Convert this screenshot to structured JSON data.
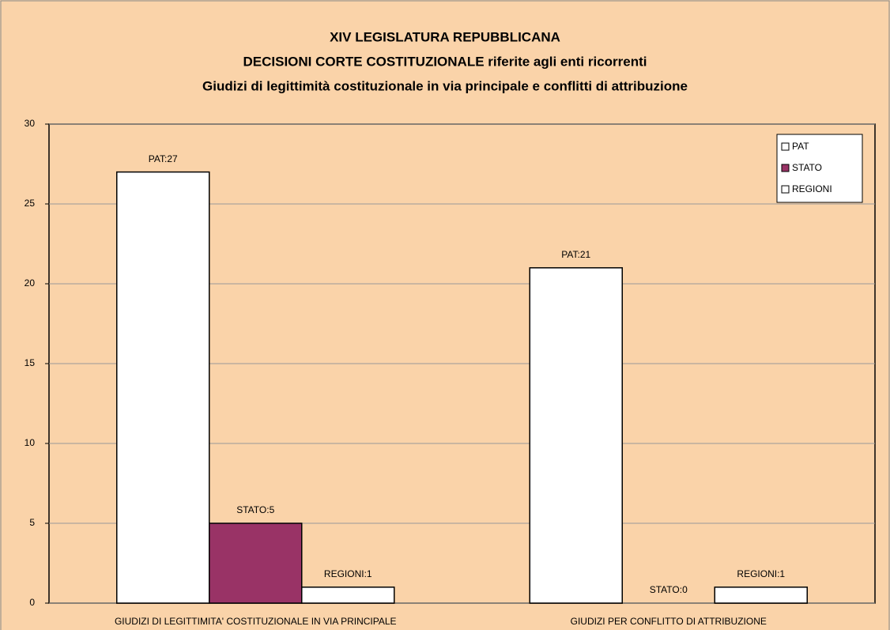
{
  "chart_data": {
    "type": "bar",
    "title": [
      "XIV LEGISLATURA REPUBBLICANA",
      "DECISIONI CORTE COSTITUZIONALE riferite agli enti ricorrenti",
      "Giudizi di legittimità costituzionale in via principale e conflitti di attribuzione"
    ],
    "categories": [
      "GIUDIZI DI LEGITTIMITA' COSTITUZIONALE IN VIA PRINCIPALE",
      "GIUDIZI PER CONFLITTO DI ATTRIBUZIONE"
    ],
    "series": [
      {
        "name": "PAT",
        "color": "#ffffff",
        "values": [
          27,
          21
        ],
        "value_labels": [
          "PAT:27",
          "PAT:21"
        ]
      },
      {
        "name": "STATO",
        "color": "#993366",
        "values": [
          5,
          0
        ],
        "value_labels": [
          "STATO:5",
          "STATO:0"
        ]
      },
      {
        "name": "REGIONI",
        "color": "#ffffff",
        "values": [
          1,
          1
        ],
        "value_labels": [
          "REGIONI:1",
          "REGIONI:1"
        ]
      }
    ],
    "ylim": [
      0,
      30
    ],
    "yticks": [
      0,
      5,
      10,
      15,
      20,
      25,
      30
    ],
    "grid": true,
    "legend": "top-right"
  }
}
